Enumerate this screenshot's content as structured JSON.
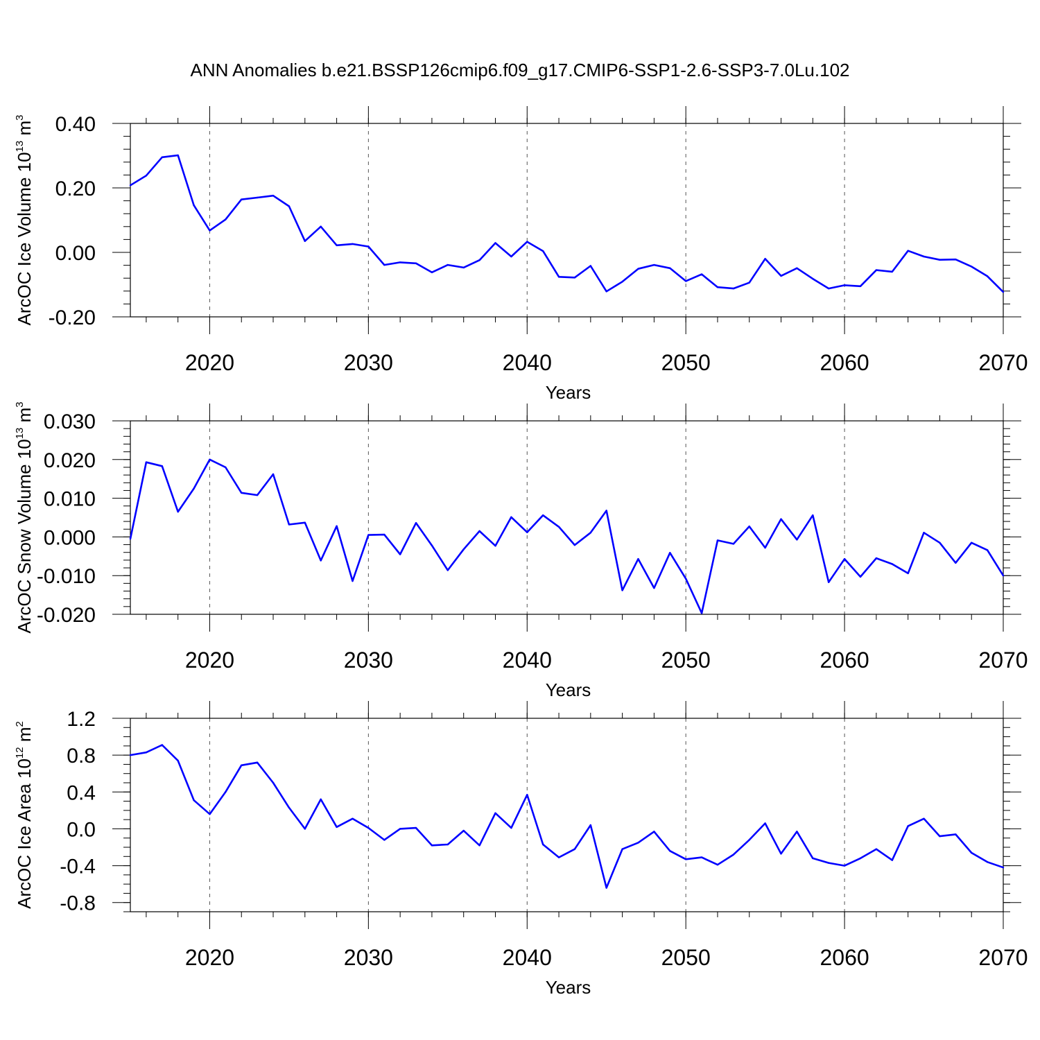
{
  "title": "ANN Anomalies b.e21.BSSP126cmip6.f09_g17.CMIP6-SSP1-2.6-SSP3-7.0Lu.102",
  "colors": {
    "line": "#0000ff",
    "frame": "#000000"
  },
  "chart_data": [
    {
      "type": "line",
      "xlabel": "Years",
      "ylabel": "ArcOC Ice Volume 10",
      "ylabel_exp": "13",
      "ylabel_unit": " m",
      "ylabel_unit_exp": "3",
      "xlim": [
        2015,
        2070
      ],
      "ylim": [
        -0.2,
        0.4
      ],
      "xticks": [
        2020,
        2030,
        2040,
        2050,
        2060,
        2070
      ],
      "xtick_labels": [
        "2020",
        "2030",
        "2040",
        "2050",
        "2060",
        "2070"
      ],
      "yticks": [
        -0.2,
        0.0,
        0.2,
        0.4
      ],
      "ytick_labels": [
        "-0.20",
        "0.00",
        "0.20",
        "0.40"
      ],
      "y_minor_step": 0.04,
      "x_minor_step": 2,
      "grid": "dashed vertical at major x ticks",
      "x": [
        2015,
        2016,
        2017,
        2018,
        2019,
        2020,
        2021,
        2022,
        2023,
        2024,
        2025,
        2026,
        2027,
        2028,
        2029,
        2030,
        2031,
        2032,
        2033,
        2034,
        2035,
        2036,
        2037,
        2038,
        2039,
        2040,
        2041,
        2042,
        2043,
        2044,
        2045,
        2046,
        2047,
        2048,
        2049,
        2050,
        2051,
        2052,
        2053,
        2054,
        2055,
        2056,
        2057,
        2058,
        2059,
        2060,
        2061,
        2062,
        2063,
        2064,
        2065,
        2066,
        2067,
        2068,
        2069,
        2070
      ],
      "y": [
        0.208,
        0.238,
        0.295,
        0.301,
        0.146,
        0.068,
        0.102,
        0.164,
        0.17,
        0.176,
        0.143,
        0.035,
        0.08,
        0.022,
        0.026,
        0.018,
        -0.039,
        -0.031,
        -0.034,
        -0.062,
        -0.039,
        -0.047,
        -0.024,
        0.029,
        -0.013,
        0.033,
        0.004,
        -0.076,
        -0.078,
        -0.042,
        -0.121,
        -0.091,
        -0.051,
        -0.039,
        -0.049,
        -0.089,
        -0.068,
        -0.108,
        -0.112,
        -0.094,
        -0.02,
        -0.073,
        -0.049,
        -0.082,
        -0.112,
        -0.102,
        -0.105,
        -0.055,
        -0.06,
        0.005,
        -0.013,
        -0.023,
        -0.022,
        -0.044,
        -0.074,
        -0.123
      ]
    },
    {
      "type": "line",
      "xlabel": "Years",
      "ylabel": "ArcOC Snow Volume 10",
      "ylabel_exp": "13",
      "ylabel_unit": " m",
      "ylabel_unit_exp": "3",
      "xlim": [
        2015,
        2070
      ],
      "ylim": [
        -0.02,
        0.03
      ],
      "xticks": [
        2020,
        2030,
        2040,
        2050,
        2060,
        2070
      ],
      "xtick_labels": [
        "2020",
        "2030",
        "2040",
        "2050",
        "2060",
        "2070"
      ],
      "yticks": [
        -0.02,
        -0.01,
        0.0,
        0.01,
        0.02,
        0.03
      ],
      "ytick_labels": [
        "-0.020",
        "-0.010",
        "0.000",
        "0.010",
        "0.020",
        "0.030"
      ],
      "y_minor_step": 0.002,
      "x_minor_step": 2,
      "grid": "dashed vertical at major x ticks",
      "x": [
        2015,
        2016,
        2017,
        2018,
        2019,
        2020,
        2021,
        2022,
        2023,
        2024,
        2025,
        2026,
        2027,
        2028,
        2029,
        2030,
        2031,
        2032,
        2033,
        2034,
        2035,
        2036,
        2037,
        2038,
        2039,
        2040,
        2041,
        2042,
        2043,
        2044,
        2045,
        2046,
        2047,
        2048,
        2049,
        2050,
        2051,
        2052,
        2053,
        2054,
        2055,
        2056,
        2057,
        2058,
        2059,
        2060,
        2061,
        2062,
        2063,
        2064,
        2065,
        2066,
        2067,
        2068,
        2069,
        2070
      ],
      "y": [
        -0.0005,
        0.0193,
        0.0183,
        0.0065,
        0.0125,
        0.02,
        0.018,
        0.0114,
        0.0108,
        0.0162,
        0.0032,
        0.0037,
        -0.0061,
        0.0028,
        -0.0114,
        0.0005,
        0.0006,
        -0.0045,
        0.0036,
        -0.0022,
        -0.0086,
        -0.0032,
        0.0015,
        -0.0023,
        0.0051,
        0.0012,
        0.0056,
        0.0026,
        -0.0021,
        0.0011,
        0.0068,
        -0.0138,
        -0.0057,
        -0.0132,
        -0.0041,
        -0.0108,
        -0.0197,
        -0.0009,
        -0.0018,
        0.0027,
        -0.0028,
        0.0046,
        -0.0007,
        0.0056,
        -0.0117,
        -0.0057,
        -0.0103,
        -0.0055,
        -0.007,
        -0.0094,
        0.0011,
        -0.0015,
        -0.0067,
        -0.0015,
        -0.0034,
        -0.01
      ]
    },
    {
      "type": "line",
      "xlabel": "Years",
      "ylabel": "ArcOC Ice Area 10",
      "ylabel_exp": "12",
      "ylabel_unit": " m",
      "ylabel_unit_exp": "2",
      "xlim": [
        2015,
        2070
      ],
      "ylim": [
        -0.9,
        1.2
      ],
      "xticks": [
        2020,
        2030,
        2040,
        2050,
        2060,
        2070
      ],
      "xtick_labels": [
        "2020",
        "2030",
        "2040",
        "2050",
        "2060",
        "2070"
      ],
      "yticks": [
        -0.8,
        -0.4,
        0.0,
        0.4,
        0.8,
        1.2
      ],
      "ytick_labels": [
        "-0.8",
        "-0.4",
        "0.0",
        "0.4",
        "0.8",
        "1.2"
      ],
      "y_minor_step": 0.1,
      "x_minor_step": 2,
      "grid": "dashed vertical at major x ticks",
      "x": [
        2015,
        2016,
        2017,
        2018,
        2019,
        2020,
        2021,
        2022,
        2023,
        2024,
        2025,
        2026,
        2027,
        2028,
        2029,
        2030,
        2031,
        2032,
        2033,
        2034,
        2035,
        2036,
        2037,
        2038,
        2039,
        2040,
        2041,
        2042,
        2043,
        2044,
        2045,
        2046,
        2047,
        2048,
        2049,
        2050,
        2051,
        2052,
        2053,
        2054,
        2055,
        2056,
        2057,
        2058,
        2059,
        2060,
        2061,
        2062,
        2063,
        2064,
        2065,
        2066,
        2067,
        2068,
        2069,
        2070
      ],
      "y": [
        0.8,
        0.83,
        0.91,
        0.74,
        0.31,
        0.16,
        0.4,
        0.69,
        0.72,
        0.5,
        0.23,
        0.0,
        0.32,
        0.02,
        0.11,
        0.01,
        -0.12,
        0.0,
        0.01,
        -0.18,
        -0.17,
        -0.02,
        -0.18,
        0.17,
        0.01,
        0.37,
        -0.17,
        -0.31,
        -0.22,
        0.04,
        -0.64,
        -0.22,
        -0.15,
        -0.03,
        -0.24,
        -0.33,
        -0.31,
        -0.39,
        -0.28,
        -0.12,
        0.06,
        -0.27,
        -0.03,
        -0.32,
        -0.37,
        -0.4,
        -0.32,
        -0.22,
        -0.34,
        0.03,
        0.11,
        -0.08,
        -0.06,
        -0.26,
        -0.36,
        -0.42
      ]
    }
  ]
}
